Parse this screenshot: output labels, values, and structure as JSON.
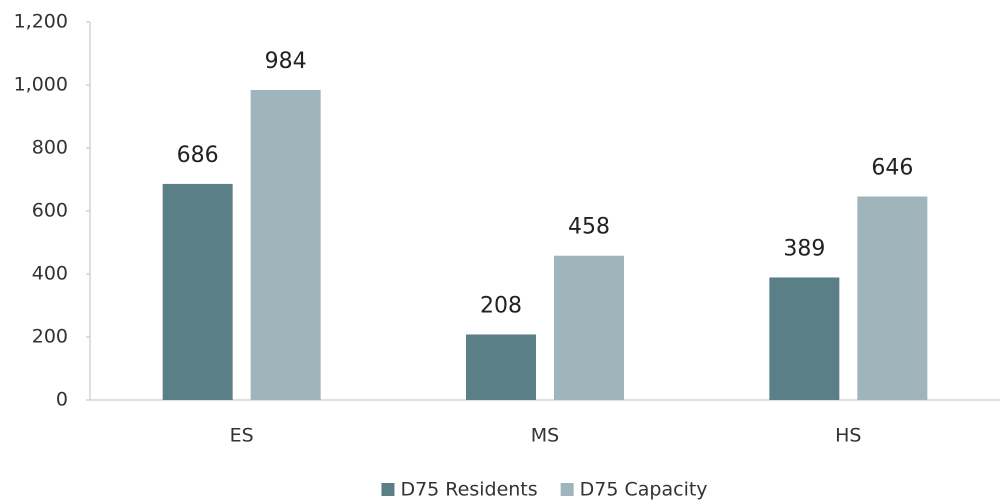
{
  "chart_data": {
    "type": "bar",
    "categories": [
      "ES",
      "MS",
      "HS"
    ],
    "series": [
      {
        "name": "D75 Residents",
        "color": "#5b7f87",
        "values": [
          686,
          208,
          389
        ]
      },
      {
        "name": "D75 Capacity",
        "color": "#9fb4bb",
        "values": [
          984,
          458,
          646
        ]
      }
    ],
    "ylim": [
      0,
      1200
    ],
    "yticks": [
      0,
      200,
      400,
      600,
      800,
      {
        "value": 1000,
        "label": "1,000"
      },
      {
        "value": 1200,
        "label": "1,200"
      }
    ],
    "legend": "bottom"
  }
}
